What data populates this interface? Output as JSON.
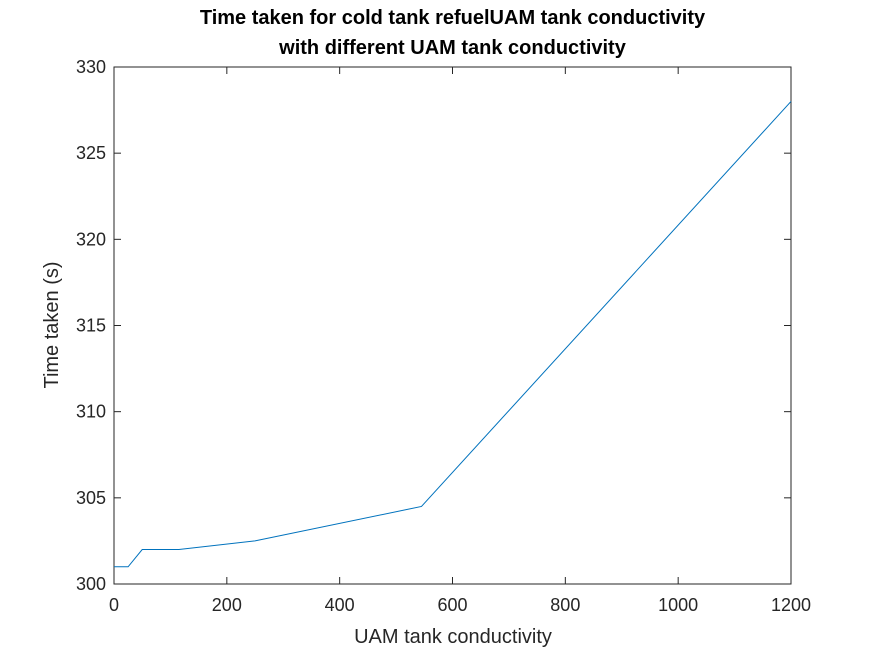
{
  "chart_data": {
    "type": "line",
    "title": [
      "Time taken for cold tank refuelUAM tank conductivity",
      "with different UAM tank conductivity"
    ],
    "xlabel": "UAM tank conductivity",
    "ylabel": "Time taken (s)",
    "xlim": [
      0,
      1200
    ],
    "ylim": [
      300,
      330
    ],
    "xticks": [
      0,
      200,
      400,
      600,
      800,
      1000,
      1200
    ],
    "yticks": [
      300,
      305,
      310,
      315,
      320,
      325,
      330
    ],
    "grid": false,
    "line_color": "#0072BD",
    "series": [
      {
        "x": [
          0,
          25,
          50,
          115,
          250,
          545,
          1200
        ],
        "y": [
          301,
          301,
          302,
          302,
          302.5,
          304.5,
          328
        ]
      }
    ]
  }
}
